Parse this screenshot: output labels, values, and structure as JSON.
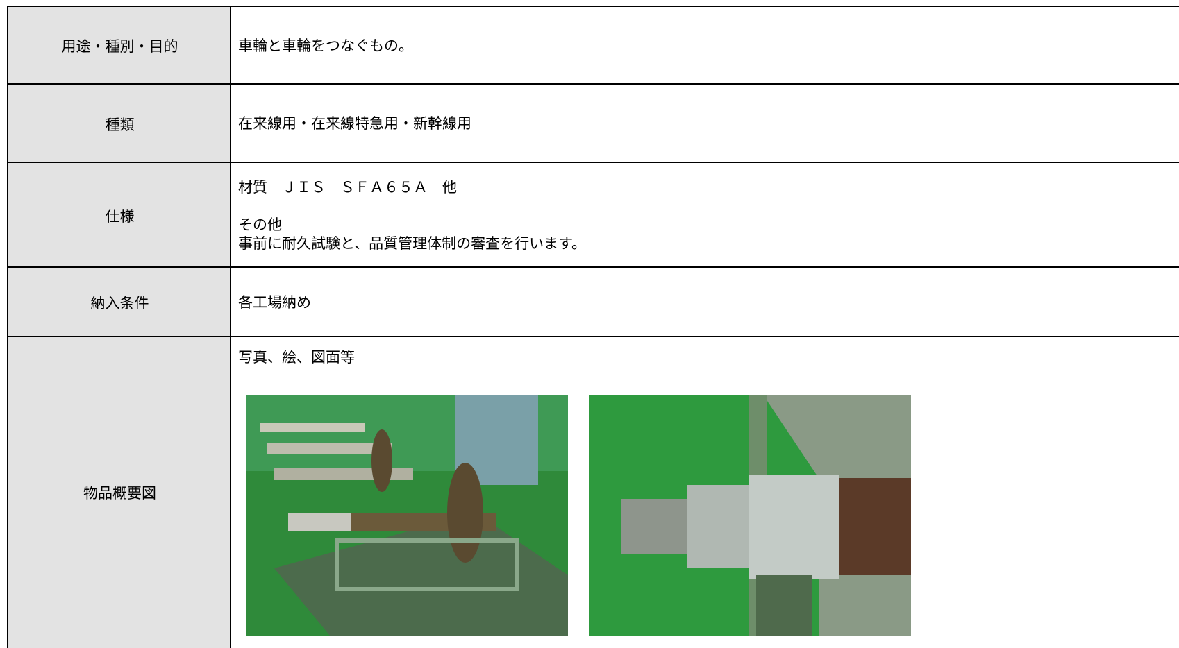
{
  "table": {
    "rows": [
      {
        "label": "用途・種別・目的",
        "lines": [
          "車輪と車輪をつなぐもの。"
        ]
      },
      {
        "label": "種類",
        "lines": [
          "在来線用・在来線特急用・新幹線用"
        ]
      },
      {
        "label": "仕様",
        "lines": [
          "材質　ＪＩＳ　ＳＦＡ６５Ａ　他",
          "その他",
          "事前に耐久試験と、品質管理体制の審査を行います。"
        ]
      },
      {
        "label": "納入条件",
        "lines": [
          "各工場納め"
        ]
      },
      {
        "label": "物品概要図",
        "lines": [
          "写真、絵、図面等"
        ]
      }
    ]
  }
}
